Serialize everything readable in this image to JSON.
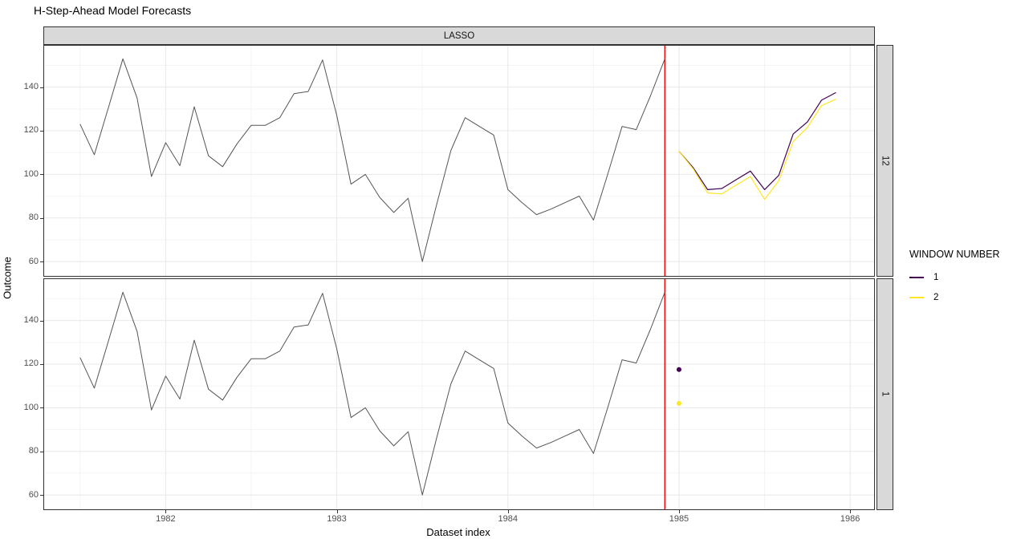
{
  "title": "H-Step-Ahead Model Forecasts",
  "facets": {
    "column_label": "LASSO",
    "row_labels": [
      "12",
      "1"
    ]
  },
  "axes": {
    "x_title": "Dataset index",
    "y_title": "Outcome",
    "x_ticks": [
      1982,
      1983,
      1984,
      1985,
      1986
    ],
    "x_tick_labels": [
      "1982",
      "1983",
      "1984",
      "1985",
      "1986"
    ],
    "x_minor_ticks": [
      1981.5,
      1982.5,
      1983.5,
      1984.5,
      1985.5
    ],
    "y_ticks": [
      60,
      80,
      100,
      120,
      140
    ],
    "y_tick_labels": [
      "60",
      "80",
      "100",
      "120",
      "140"
    ],
    "y_minor_ticks": [
      70,
      90,
      110,
      130,
      150
    ],
    "x_domain": [
      1981.29,
      1986.14
    ],
    "y_domain": [
      53.4,
      159
    ]
  },
  "legend": {
    "title": "WINDOW NUMBER",
    "entries": [
      {
        "label": "1",
        "color": "#440154"
      },
      {
        "label": "2",
        "color": "#FDE725"
      }
    ]
  },
  "colors": {
    "history_line": "#555555",
    "cutoff_line": "#FF0000",
    "strip_background": "#D9D9D9",
    "panel_border": "#333333",
    "grid_major": "#E8E8E8",
    "grid_minor": "#F4F4F4",
    "axis_text": "#4D4D4D"
  },
  "chart_data": [
    {
      "type": "line",
      "facet_row": "12",
      "vline_x": 1984.917,
      "series": [
        {
          "name": "observed-outcome",
          "color": "#555555",
          "width": 1,
          "marker": "none",
          "x": [
            1981.5,
            1981.583,
            1981.667,
            1981.75,
            1981.833,
            1981.917,
            1982,
            1982.083,
            1982.167,
            1982.25,
            1982.333,
            1982.417,
            1982.5,
            1982.583,
            1982.667,
            1982.75,
            1982.833,
            1982.917,
            1983,
            1983.083,
            1983.167,
            1983.25,
            1983.333,
            1983.417,
            1983.5,
            1983.583,
            1983.667,
            1983.75,
            1983.833,
            1983.917,
            1984,
            1984.083,
            1984.167,
            1984.25,
            1984.333,
            1984.417,
            1984.5,
            1984.583,
            1984.667,
            1984.75,
            1984.833,
            1984.917
          ],
          "y": [
            123,
            109,
            131,
            153,
            135,
            99,
            114.5,
            104,
            131,
            108.5,
            103.5,
            114,
            122.5,
            122.5,
            126,
            137,
            138,
            152.5,
            127,
            95.5,
            100,
            89.5,
            82.5,
            89,
            60,
            86,
            111,
            126,
            122,
            118,
            93,
            87,
            81.5,
            84,
            87,
            90,
            79,
            100,
            122,
            120.5,
            136,
            153
          ]
        },
        {
          "name": "window-1-forecast",
          "color": "#440154",
          "width": 1.2,
          "marker": "none",
          "x": [
            1985,
            1985.083,
            1985.167,
            1985.25,
            1985.333,
            1985.417,
            1985.5,
            1985.583,
            1985.667,
            1985.75,
            1985.833,
            1985.917
          ],
          "y": [
            110.5,
            103,
            93,
            93.5,
            97.5,
            101.5,
            93,
            99.5,
            118.5,
            124,
            134,
            137.5
          ]
        },
        {
          "name": "window-2-forecast",
          "color": "#FDE725",
          "width": 1.2,
          "marker": "none",
          "x": [
            1985,
            1985.083,
            1985.167,
            1985.25,
            1985.333,
            1985.417,
            1985.5,
            1985.583,
            1985.667,
            1985.75,
            1985.833,
            1985.917
          ],
          "y": [
            110.5,
            102.5,
            91.5,
            91,
            95,
            99,
            88.5,
            97,
            115,
            121.5,
            131.5,
            134.5
          ]
        }
      ]
    },
    {
      "type": "line",
      "facet_row": "1",
      "vline_x": 1984.917,
      "series": [
        {
          "name": "observed-outcome",
          "color": "#555555",
          "width": 1,
          "marker": "none",
          "x": [
            1981.5,
            1981.583,
            1981.667,
            1981.75,
            1981.833,
            1981.917,
            1982,
            1982.083,
            1982.167,
            1982.25,
            1982.333,
            1982.417,
            1982.5,
            1982.583,
            1982.667,
            1982.75,
            1982.833,
            1982.917,
            1983,
            1983.083,
            1983.167,
            1983.25,
            1983.333,
            1983.417,
            1983.5,
            1983.583,
            1983.667,
            1983.75,
            1983.833,
            1983.917,
            1984,
            1984.083,
            1984.167,
            1984.25,
            1984.333,
            1984.417,
            1984.5,
            1984.583,
            1984.667,
            1984.75,
            1984.833,
            1984.917
          ],
          "y": [
            123,
            109,
            131,
            153,
            135,
            99,
            114.5,
            104,
            131,
            108.5,
            103.5,
            114,
            122.5,
            122.5,
            126,
            137,
            138,
            152.5,
            127,
            95.5,
            100,
            89.5,
            82.5,
            89,
            60,
            86,
            111,
            126,
            122,
            118,
            93,
            87,
            81.5,
            84,
            87,
            90,
            79,
            100,
            122,
            120.5,
            136,
            153
          ]
        },
        {
          "name": "window-1-forecast",
          "color": "#440154",
          "width": 1.2,
          "marker": "point",
          "x": [
            1985
          ],
          "y": [
            117.5
          ]
        },
        {
          "name": "window-2-forecast",
          "color": "#FDE725",
          "width": 1.2,
          "marker": "point",
          "x": [
            1985
          ],
          "y": [
            102
          ]
        }
      ]
    }
  ]
}
